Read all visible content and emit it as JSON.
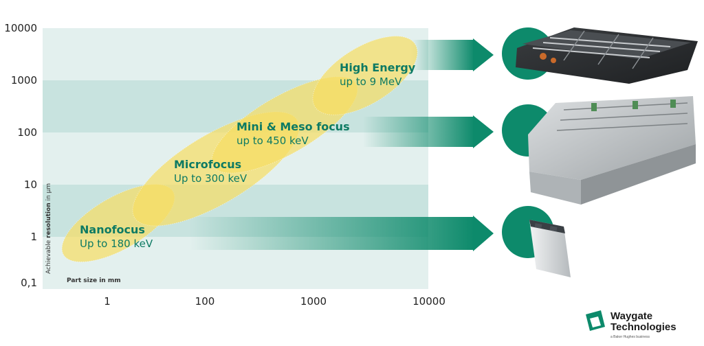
{
  "chart_data": {
    "type": "scatter",
    "ylabel_pre": "Achievable ",
    "ylabel_bold": "resolution",
    "ylabel_post": " in μm",
    "xlabel_pre": "Part size in ",
    "xlabel_bold": "mm",
    "yticks": [
      "10000",
      "1000",
      "100",
      "10",
      "1",
      "0,1"
    ],
    "xticks": [
      "1",
      "100",
      "1000",
      "10000"
    ],
    "regions": [
      {
        "name": "Nanofocus",
        "energy": "Up to 180 keV"
      },
      {
        "name": "Microfocus",
        "energy": "Up to 300 keV"
      },
      {
        "name": "Mini & Meso focus",
        "energy": "up to 450 keV"
      },
      {
        "name": "High Energy",
        "energy": "up to 9 MeV"
      }
    ],
    "colors": {
      "band_light": "#e3f0ee",
      "band_dark": "#c8e3df",
      "ellipse": "#f7dd63",
      "accent": "#0d8a6b"
    }
  },
  "brand": {
    "name_line1": "Waygate",
    "name_line2": "Technologies",
    "tagline": "a Baker Hughes business"
  }
}
